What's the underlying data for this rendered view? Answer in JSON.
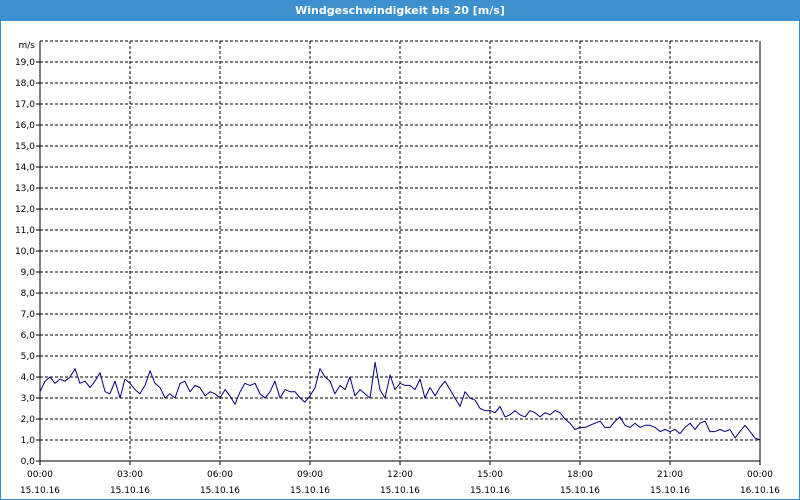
{
  "window": {
    "title": "Windgeschwindigkeit bis 20 [m/s]"
  },
  "colors": {
    "titlebar": "#3d91cf",
    "series": "#00007a",
    "grid": "#000000"
  },
  "chart_data": {
    "type": "line",
    "title": "Windgeschwindigkeit bis 20 [m/s]",
    "ylabel": "m/s",
    "xlabel": "",
    "ylim": [
      0,
      20
    ],
    "xlim_hours": [
      0,
      24
    ],
    "grid": true,
    "legend": "none",
    "y_ticks": [
      {
        "v": 0,
        "label": "0,0"
      },
      {
        "v": 1,
        "label": "1,0"
      },
      {
        "v": 2,
        "label": "2,0"
      },
      {
        "v": 3,
        "label": "3,0"
      },
      {
        "v": 4,
        "label": "4,0"
      },
      {
        "v": 5,
        "label": "5,0"
      },
      {
        "v": 6,
        "label": "6,0"
      },
      {
        "v": 7,
        "label": "7,0"
      },
      {
        "v": 8,
        "label": "8,0"
      },
      {
        "v": 9,
        "label": "9,0"
      },
      {
        "v": 10,
        "label": "10,0"
      },
      {
        "v": 11,
        "label": "11,0"
      },
      {
        "v": 12,
        "label": "12,0"
      },
      {
        "v": 13,
        "label": "13,0"
      },
      {
        "v": 14,
        "label": "14,0"
      },
      {
        "v": 15,
        "label": "15,0"
      },
      {
        "v": 16,
        "label": "16,0"
      },
      {
        "v": 17,
        "label": "17,0"
      },
      {
        "v": 18,
        "label": "18,0"
      },
      {
        "v": 19,
        "label": "19,0"
      }
    ],
    "x_ticks": [
      {
        "h": 0,
        "time": "00:00",
        "date": "15.10.16"
      },
      {
        "h": 3,
        "time": "03:00",
        "date": "15.10.16"
      },
      {
        "h": 6,
        "time": "06:00",
        "date": "15.10.16"
      },
      {
        "h": 9,
        "time": "09:00",
        "date": "15.10.16"
      },
      {
        "h": 12,
        "time": "12:00",
        "date": "15.10.16"
      },
      {
        "h": 15,
        "time": "15:00",
        "date": "15.10.16"
      },
      {
        "h": 18,
        "time": "18:00",
        "date": "15.10.16"
      },
      {
        "h": 21,
        "time": "21:00",
        "date": "15.10.16"
      },
      {
        "h": 24,
        "time": "00:00",
        "date": "16.10.16"
      }
    ],
    "series": [
      {
        "x_hours": [
          0,
          0.17,
          0.33,
          0.5,
          0.67,
          0.83,
          1,
          1.17,
          1.33,
          1.5,
          1.67,
          1.83,
          2,
          2.17,
          2.33,
          2.5,
          2.67,
          2.83,
          3,
          3.17,
          3.33,
          3.5,
          3.67,
          3.83,
          4,
          4.17,
          4.33,
          4.5,
          4.67,
          4.83,
          5,
          5.17,
          5.33,
          5.5,
          5.67,
          5.83,
          6,
          6.17,
          6.33,
          6.5,
          6.67,
          6.83,
          7,
          7.17,
          7.33,
          7.5,
          7.67,
          7.83,
          8,
          8.17,
          8.33,
          8.5,
          8.67,
          8.83,
          9,
          9.17,
          9.33,
          9.5,
          9.67,
          9.83,
          10,
          10.17,
          10.33,
          10.5,
          10.67,
          10.83,
          11,
          11.17,
          11.33,
          11.5,
          11.67,
          11.83,
          12,
          12.17,
          12.33,
          12.5,
          12.67,
          12.83,
          13,
          13.17,
          13.33,
          13.5,
          13.67,
          13.83,
          14,
          14.17,
          14.33,
          14.5,
          14.67,
          14.83,
          15,
          15.17,
          15.33,
          15.5,
          15.67,
          15.83,
          16,
          16.17,
          16.33,
          16.5,
          16.67,
          16.83,
          17,
          17.17,
          17.33,
          17.5,
          17.67,
          17.83,
          18,
          18.17,
          18.33,
          18.5,
          18.67,
          18.83,
          19,
          19.17,
          19.33,
          19.5,
          19.67,
          19.83,
          20,
          20.17,
          20.33,
          20.5,
          20.67,
          20.83,
          21,
          21.17,
          21.33,
          21.5,
          21.67,
          21.83,
          22,
          22.17,
          22.33,
          22.5,
          22.67,
          22.83,
          23,
          23.17,
          23.33,
          23.5,
          23.67,
          23.83,
          24
        ],
        "values": [
          3.3,
          3.8,
          4.0,
          3.7,
          3.9,
          3.8,
          4.0,
          4.4,
          3.7,
          3.8,
          3.5,
          3.8,
          4.2,
          3.3,
          3.2,
          3.8,
          3.0,
          3.9,
          3.7,
          3.4,
          3.2,
          3.6,
          4.3,
          3.7,
          3.5,
          3.0,
          3.2,
          3.0,
          3.7,
          3.8,
          3.3,
          3.6,
          3.5,
          3.1,
          3.3,
          3.2,
          3.0,
          3.4,
          3.1,
          2.7,
          3.3,
          3.7,
          3.6,
          3.7,
          3.2,
          3.0,
          3.3,
          3.8,
          3.0,
          3.4,
          3.3,
          3.3,
          3.0,
          2.8,
          3.1,
          3.5,
          4.4,
          4.0,
          3.8,
          3.2,
          3.6,
          3.4,
          4.0,
          3.1,
          3.4,
          3.2,
          3.0,
          4.7,
          3.4,
          3.0,
          4.1,
          3.4,
          3.7,
          3.6,
          3.6,
          3.4,
          3.9,
          3.0,
          3.5,
          3.1,
          3.5,
          3.8,
          3.4,
          3.0,
          2.6,
          3.3,
          3.0,
          2.9,
          2.5,
          2.4,
          2.4,
          2.3,
          2.6,
          2.1,
          2.2,
          2.4,
          2.2,
          2.1,
          2.4,
          2.3,
          2.1,
          2.3,
          2.2,
          2.4,
          2.3,
          2.0,
          1.8,
          1.5,
          1.6,
          1.6,
          1.7,
          1.8,
          1.9,
          1.6,
          1.6,
          1.9,
          2.1,
          1.7,
          1.6,
          1.8,
          1.6,
          1.7,
          1.7,
          1.6,
          1.4,
          1.5,
          1.4,
          1.5,
          1.3,
          1.6,
          1.8,
          1.5,
          1.8,
          1.9,
          1.4,
          1.4,
          1.5,
          1.4,
          1.5,
          1.1,
          1.4,
          1.7,
          1.4,
          1.1,
          1.0
        ]
      }
    ]
  }
}
